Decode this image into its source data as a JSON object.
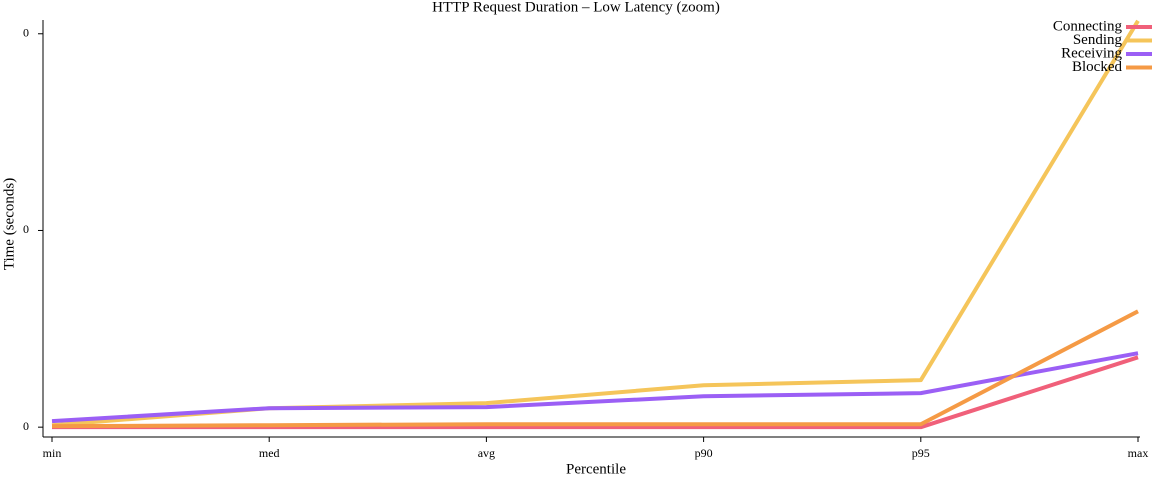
{
  "chart_data": {
    "type": "line",
    "title": "HTTP Request Duration – Low Latency (zoom)",
    "x_label": "Percentile",
    "y_label": "Time (seconds)",
    "categories": [
      "min",
      "med",
      "avg",
      "p90",
      "p95",
      "max"
    ],
    "series": [
      {
        "name": "Connecting",
        "color": "#f0607a",
        "values": [
          0,
          0,
          0,
          0,
          0,
          0.000355
        ]
      },
      {
        "name": "Sending",
        "color": "#f5c55a",
        "values": [
          1e-05,
          9.64e-05,
          0.000122,
          0.000213,
          0.000239,
          0.002066
        ]
      },
      {
        "name": "Receiving",
        "color": "#9b5ff5",
        "values": [
          3.05e-05,
          9.64e-05,
          0.000102,
          0.000157,
          0.000173,
          0.000376
        ]
      },
      {
        "name": "Blocked",
        "color": "#f59a45",
        "values": [
          5e-06,
          1e-05,
          1.5e-05,
          1.5e-05,
          1.5e-05,
          0.000589
        ]
      }
    ],
    "ylim": [
      -5e-05,
      0.00207
    ],
    "yticks": [
      0,
      {
        "value": 0.001,
        "label": "0"
      },
      {
        "value": 0.002,
        "label": "0"
      }
    ],
    "grid": false,
    "legend": "top-right"
  }
}
